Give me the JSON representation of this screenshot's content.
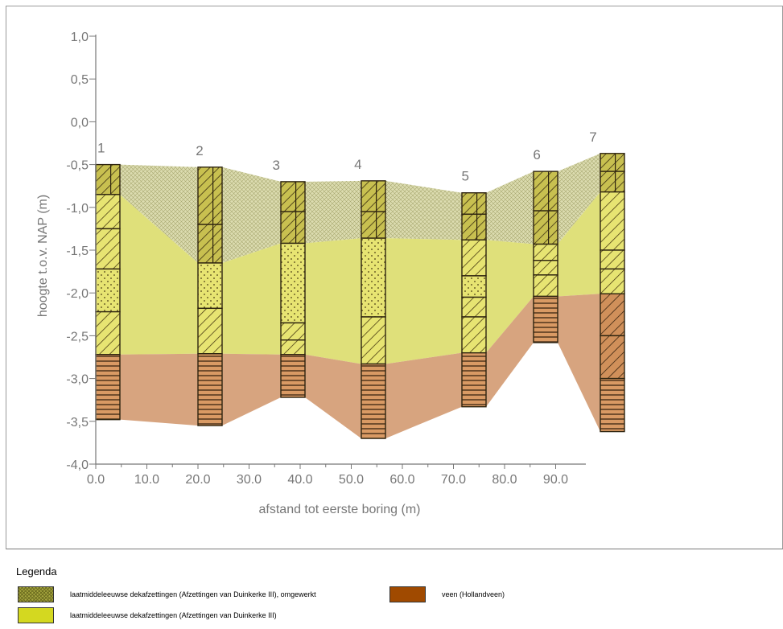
{
  "diagram": {
    "type": "geological-cross-section",
    "ylabel": "hoogte t.o.v. NAP (m)",
    "xlabel": "afstand tot eerste boring (m)",
    "y_ticks": [
      "1,0",
      "0,5",
      "0,0",
      "-0,5",
      "-1,0",
      "-1,5",
      "-2,0",
      "-2,5",
      "-3,0",
      "-3,5",
      "-4,0"
    ],
    "x_ticks": [
      "0.0",
      "10.0",
      "20.0",
      "30.0",
      "40.0",
      "50.0",
      "60.0",
      "70.0",
      "80.0",
      "90.0"
    ],
    "ylim": [
      -4.0,
      1.0
    ],
    "xlim": [
      0,
      95
    ],
    "colors": {
      "omgewerkt": "#d8d8a0",
      "duinkerke": "#dfe07a",
      "veen": "#d7a47f",
      "boring_fill_yellow": "#e7e472",
      "boring_fill_peat": "#d99a64",
      "hatch": "#5a4a1a"
    },
    "borings": [
      {
        "label": "1",
        "x": 0,
        "top": -0.5,
        "omgewerkt_bottom": -0.85,
        "duinkerke_bottom": -2.72,
        "bottom": -3.48,
        "segments": [
          {
            "from": -0.5,
            "to": -0.85,
            "pattern": "cross"
          },
          {
            "from": -0.85,
            "to": -1.25,
            "pattern": "diag"
          },
          {
            "from": -1.25,
            "to": -1.72,
            "pattern": "diag"
          },
          {
            "from": -1.72,
            "to": -2.22,
            "pattern": "dots"
          },
          {
            "from": -2.22,
            "to": -2.72,
            "pattern": "diag"
          },
          {
            "from": -2.72,
            "to": -3.48,
            "pattern": "hlines"
          }
        ]
      },
      {
        "label": "2",
        "x": 20,
        "top": -0.53,
        "omgewerkt_bottom": -1.65,
        "duinkerke_bottom": -2.71,
        "bottom": -3.55,
        "segments": [
          {
            "from": -0.53,
            "to": -1.2,
            "pattern": "cross"
          },
          {
            "from": -1.2,
            "to": -1.65,
            "pattern": "cross"
          },
          {
            "from": -1.65,
            "to": -2.18,
            "pattern": "dots"
          },
          {
            "from": -2.18,
            "to": -2.71,
            "pattern": "diag"
          },
          {
            "from": -2.71,
            "to": -3.55,
            "pattern": "hlines"
          }
        ]
      },
      {
        "label": "3",
        "x": 35,
        "top": -0.7,
        "omgewerkt_bottom": -1.42,
        "duinkerke_bottom": -2.72,
        "bottom": -3.22,
        "segments": [
          {
            "from": -0.7,
            "to": -1.05,
            "pattern": "cross"
          },
          {
            "from": -1.05,
            "to": -1.42,
            "pattern": "cross"
          },
          {
            "from": -1.42,
            "to": -2.35,
            "pattern": "dots"
          },
          {
            "from": -2.35,
            "to": -2.55,
            "pattern": "diag"
          },
          {
            "from": -2.55,
            "to": -2.72,
            "pattern": "diag"
          },
          {
            "from": -2.72,
            "to": -3.22,
            "pattern": "hlines"
          }
        ]
      },
      {
        "label": "4",
        "x": 51,
        "top": -0.69,
        "omgewerkt_bottom": -1.36,
        "duinkerke_bottom": -2.83,
        "bottom": -3.7,
        "segments": [
          {
            "from": -0.69,
            "to": -1.05,
            "pattern": "cross"
          },
          {
            "from": -1.05,
            "to": -1.36,
            "pattern": "cross"
          },
          {
            "from": -1.36,
            "to": -2.28,
            "pattern": "dots"
          },
          {
            "from": -2.28,
            "to": -2.83,
            "pattern": "diag"
          },
          {
            "from": -2.83,
            "to": -3.7,
            "pattern": "hlines"
          }
        ]
      },
      {
        "label": "5",
        "x": 72,
        "top": -0.83,
        "omgewerkt_bottom": -1.38,
        "duinkerke_bottom": -2.7,
        "bottom": -3.33,
        "segments": [
          {
            "from": -0.83,
            "to": -1.08,
            "pattern": "cross"
          },
          {
            "from": -1.08,
            "to": -1.38,
            "pattern": "cross"
          },
          {
            "from": -1.38,
            "to": -1.8,
            "pattern": "diag"
          },
          {
            "from": -1.8,
            "to": -2.05,
            "pattern": "dots"
          },
          {
            "from": -2.05,
            "to": -2.28,
            "pattern": "diag"
          },
          {
            "from": -2.28,
            "to": -2.7,
            "pattern": "diag"
          },
          {
            "from": -2.7,
            "to": -3.33,
            "pattern": "hlines"
          }
        ]
      },
      {
        "label": "6",
        "x": 86,
        "top": -0.58,
        "omgewerkt_bottom": -1.43,
        "duinkerke_bottom": -2.04,
        "bottom": -2.58,
        "segments": [
          {
            "from": -0.58,
            "to": -1.04,
            "pattern": "cross"
          },
          {
            "from": -1.04,
            "to": -1.43,
            "pattern": "cross"
          },
          {
            "from": -1.43,
            "to": -1.62,
            "pattern": "diag"
          },
          {
            "from": -1.62,
            "to": -1.79,
            "pattern": "diag"
          },
          {
            "from": -1.79,
            "to": -2.04,
            "pattern": "diag"
          },
          {
            "from": -2.04,
            "to": -2.58,
            "pattern": "hlines"
          }
        ]
      },
      {
        "label": "7",
        "x": 97,
        "top": -0.37,
        "omgewerkt_bottom": -0.82,
        "duinkerke_bottom": -2.01,
        "bottom": -3.62,
        "segments": [
          {
            "from": -0.37,
            "to": -0.58,
            "pattern": "cross"
          },
          {
            "from": -0.58,
            "to": -0.82,
            "pattern": "cross"
          },
          {
            "from": -0.82,
            "to": -1.5,
            "pattern": "diag"
          },
          {
            "from": -1.5,
            "to": -1.72,
            "pattern": "diag"
          },
          {
            "from": -1.72,
            "to": -2.01,
            "pattern": "diag"
          },
          {
            "from": -2.01,
            "to": -2.5,
            "pattern": "peatdiag"
          },
          {
            "from": -2.5,
            "to": -3.0,
            "pattern": "peatdiag"
          },
          {
            "from": -3.0,
            "to": -3.62,
            "pattern": "hlines"
          }
        ]
      }
    ]
  },
  "legend": {
    "title": "Legenda",
    "items": [
      {
        "label": "laatmiddeleeuwse dekafzettingen (Afzettingen van Duinkerke III), omgewerkt",
        "color": "#a8a840",
        "pattern": "checker"
      },
      {
        "label": "veen (Hollandveen)",
        "color": "#a04a00",
        "pattern": "solid"
      },
      {
        "label": "laatmiddeleeuwse dekafzettingen (Afzettingen van Duinkerke III)",
        "color": "#d4d820",
        "pattern": "solid"
      }
    ]
  }
}
